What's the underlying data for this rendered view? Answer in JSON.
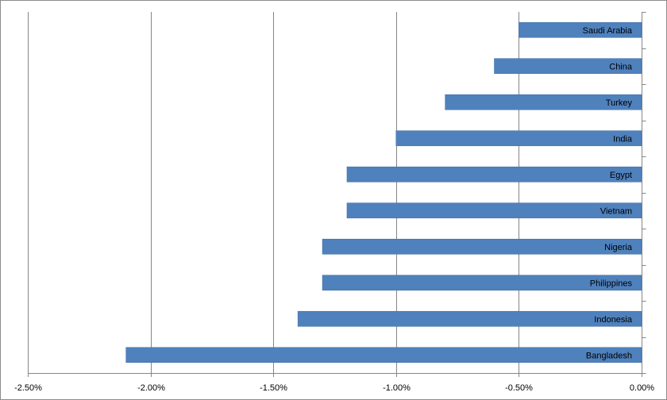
{
  "chart_data": {
    "type": "bar",
    "orientation": "horizontal",
    "categories": [
      "Saudi Arabia",
      "China",
      "Turkey",
      "India",
      "Egypt",
      "Vietnam",
      "Nigeria",
      "Philippines",
      "Indonesia",
      "Bangladesh"
    ],
    "values": [
      -0.5,
      -0.6,
      -0.8,
      -1.0,
      -1.2,
      -1.2,
      -1.3,
      -1.3,
      -1.4,
      -2.1
    ],
    "value_unit": "%",
    "xlim": [
      -2.5,
      0
    ],
    "x_ticks": [
      -2.5,
      -2.0,
      -1.5,
      -1.0,
      -0.5,
      0.0
    ],
    "x_tick_labels": [
      "-2.50%",
      "-2.00%",
      "-1.50%",
      "-1.00%",
      "-0.50%",
      "0.00%"
    ],
    "title": "",
    "xlabel": "",
    "ylabel": "",
    "grid": "vertical",
    "legend": "none",
    "colors": {
      "bar": "#4f81bd",
      "bar_edge": "#3f6b9f",
      "grid": "#868686",
      "axis": "#868686"
    }
  }
}
